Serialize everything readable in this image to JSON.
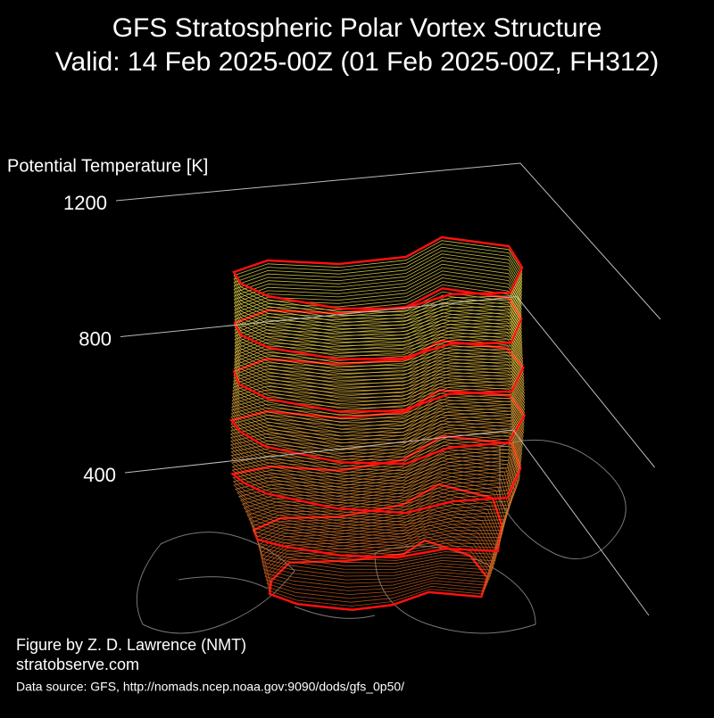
{
  "chart_data": {
    "type": "vortex3d",
    "title": "GFS Stratospheric Polar Vortex Structure",
    "subtitle": "Valid: 14 Feb 2025-00Z  (01 Feb 2025-00Z, FH312)",
    "z_label": "Potential Temperature [K]",
    "zlim": [
      400,
      1200
    ],
    "zticks": [
      400,
      800,
      1200
    ],
    "annotations": [
      "Figure by Z. D. Lawrence (NMT)",
      "stratobserve.com",
      "Data source: GFS, http://nomads.ncep.noaa.gov:9090/dods/gfs_0p50/"
    ]
  }
}
